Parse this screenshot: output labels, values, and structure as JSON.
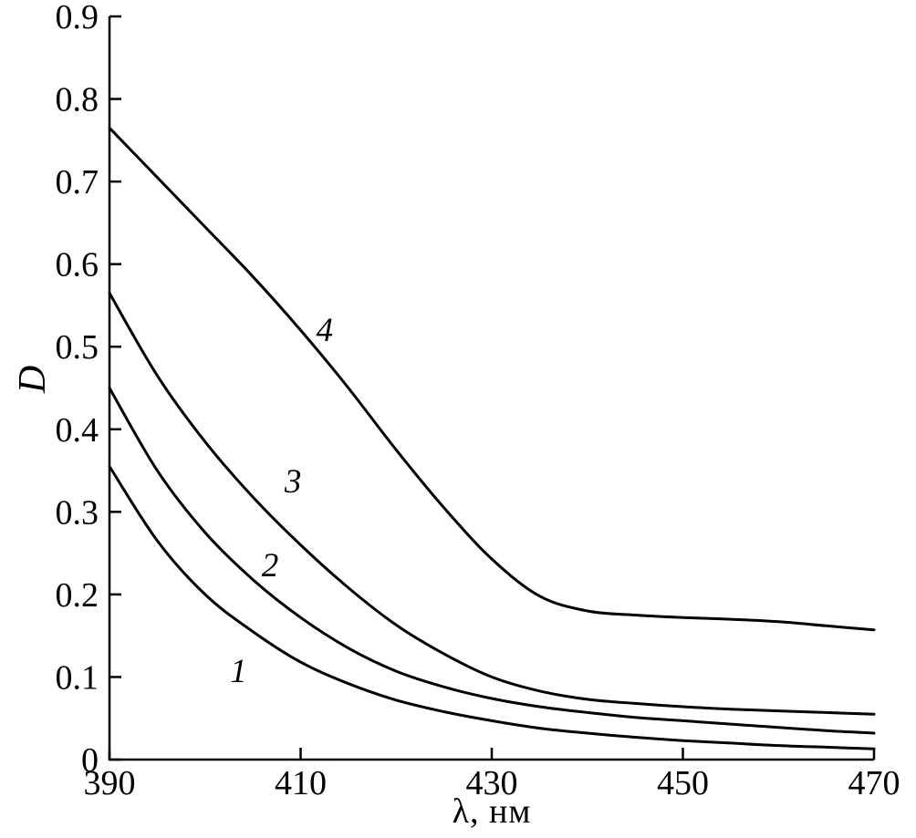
{
  "figure": {
    "background": "#ffffff",
    "kind": "absorption-spectra-line-plot"
  },
  "chart_data": {
    "type": "line",
    "title": "",
    "xlabel": "λ, нм",
    "ylabel": "D",
    "xlim": [
      390,
      470
    ],
    "ylim": [
      0,
      0.9
    ],
    "xticks": [
      390,
      410,
      430,
      450,
      470
    ],
    "xtick_labels": [
      "390",
      "410",
      "430",
      "450",
      "470"
    ],
    "yticks": [
      0,
      0.1,
      0.2,
      0.3,
      0.4,
      0.5,
      0.6,
      0.7,
      0.8,
      0.9
    ],
    "ytick_labels": [
      "0",
      "0.1",
      "0.2",
      "0.3",
      "0.4",
      "0.5",
      "0.6",
      "0.7",
      "0.8",
      "0.9"
    ],
    "grid": false,
    "legend_position": "none",
    "annotation_style": "inline italic curve numbers",
    "line_color": "#000000",
    "x": [
      390,
      395,
      400,
      405,
      410,
      415,
      420,
      425,
      430,
      435,
      440,
      445,
      450,
      455,
      460,
      465,
      470
    ],
    "series": [
      {
        "name": "curve-1",
        "label": "1",
        "label_at": {
          "x": 403.5,
          "y": 0.107
        },
        "values": [
          0.355,
          0.265,
          0.2,
          0.155,
          0.118,
          0.092,
          0.072,
          0.058,
          0.047,
          0.038,
          0.032,
          0.027,
          0.023,
          0.02,
          0.017,
          0.015,
          0.013
        ]
      },
      {
        "name": "curve-2",
        "label": "2",
        "label_at": {
          "x": 406.8,
          "y": 0.235
        },
        "values": [
          0.45,
          0.35,
          0.275,
          0.218,
          0.172,
          0.135,
          0.107,
          0.088,
          0.074,
          0.064,
          0.057,
          0.051,
          0.047,
          0.043,
          0.039,
          0.035,
          0.032
        ]
      },
      {
        "name": "curve-3",
        "label": "3",
        "label_at": {
          "x": 409.2,
          "y": 0.337
        },
        "values": [
          0.565,
          0.465,
          0.385,
          0.318,
          0.26,
          0.208,
          0.163,
          0.128,
          0.1,
          0.083,
          0.073,
          0.068,
          0.064,
          0.061,
          0.059,
          0.057,
          0.055
        ]
      },
      {
        "name": "curve-4",
        "label": "4",
        "label_at": {
          "x": 412.5,
          "y": 0.52
        },
        "values": [
          0.765,
          0.705,
          0.645,
          0.585,
          0.52,
          0.45,
          0.375,
          0.305,
          0.243,
          0.198,
          0.18,
          0.175,
          0.172,
          0.17,
          0.167,
          0.162,
          0.157
        ]
      }
    ]
  }
}
